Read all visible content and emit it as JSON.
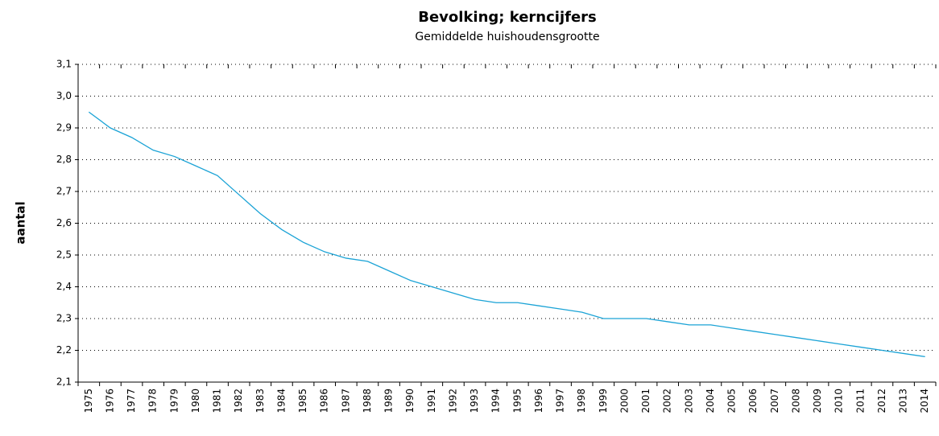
{
  "chart_data": {
    "type": "line",
    "title": "Bevolking; kerncijfers",
    "subtitle": "Gemiddelde huishoudensgrootte",
    "y_label": "aantal",
    "categories": [
      "1975",
      "1976",
      "1977",
      "1978",
      "1979",
      "1980",
      "1981",
      "1982",
      "1983",
      "1984",
      "1985",
      "1986",
      "1987",
      "1988",
      "1989",
      "1990",
      "1991",
      "1992",
      "1993",
      "1994",
      "1995",
      "1996",
      "1997",
      "1998",
      "1999",
      "2000",
      "2001",
      "2002",
      "2003",
      "2004",
      "2005",
      "2006",
      "2007",
      "2008",
      "2009",
      "2010",
      "2011",
      "2012",
      "2013",
      "2014"
    ],
    "series": [
      {
        "name": "Gemiddelde huishoudensgrootte",
        "color": "#1ba3d6",
        "values": [
          2.95,
          2.9,
          2.87,
          2.83,
          2.81,
          2.78,
          2.75,
          2.69,
          2.63,
          2.58,
          2.54,
          2.51,
          2.49,
          2.48,
          2.45,
          2.42,
          2.4,
          2.38,
          2.36,
          2.35,
          2.35,
          2.34,
          2.33,
          2.32,
          2.3,
          2.3,
          2.3,
          2.29,
          2.28,
          2.28,
          2.27,
          2.26,
          2.25,
          2.24,
          2.23,
          2.22,
          2.21,
          2.2,
          2.19,
          2.18
        ]
      }
    ],
    "ylim": [
      2.1,
      3.1
    ],
    "yticks": [
      {
        "value": 2.1,
        "label": "2,1"
      },
      {
        "value": 2.2,
        "label": "2,2"
      },
      {
        "value": 2.3,
        "label": "2,3"
      },
      {
        "value": 2.4,
        "label": "2,4"
      },
      {
        "value": 2.5,
        "label": "2,5"
      },
      {
        "value": 2.6,
        "label": "2,6"
      },
      {
        "value": 2.7,
        "label": "2,7"
      },
      {
        "value": 2.8,
        "label": "2,8"
      },
      {
        "value": 2.9,
        "label": "2,9"
      },
      {
        "value": 3.0,
        "label": "3,0"
      },
      {
        "value": 3.1,
        "label": "3,1"
      }
    ],
    "grid": true
  }
}
